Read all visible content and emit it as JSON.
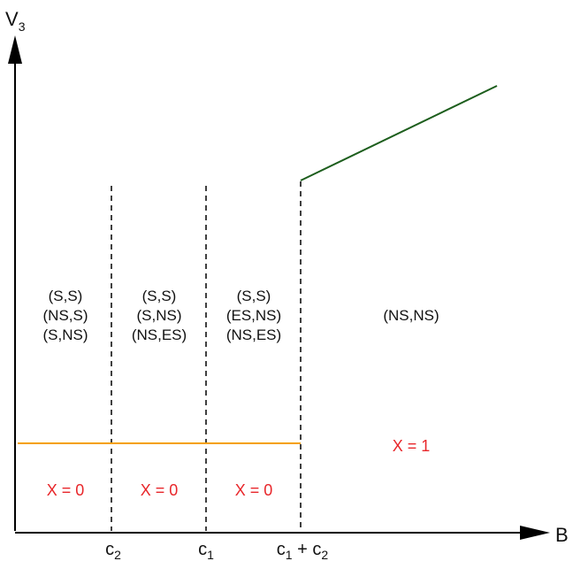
{
  "axes": {
    "y_title": "V",
    "y_title_sub": "3",
    "x_title": "B"
  },
  "ticks": [
    {
      "main": "c",
      "sub": "2"
    },
    {
      "main": "c",
      "sub": "1"
    },
    {
      "main": "c",
      "sub": "1",
      "mid": " + c",
      "sub2": "2"
    }
  ],
  "regions": [
    {
      "lines": [
        "(S,S)",
        "(NS,S)",
        "(S,NS)"
      ],
      "x_label": "X = 0"
    },
    {
      "lines": [
        "(S,S)",
        "(S,NS)",
        "(NS,ES)"
      ],
      "x_label": "X = 0"
    },
    {
      "lines": [
        "(S,S)",
        "(ES,NS)",
        "(NS,ES)"
      ],
      "x_label": "X = 0"
    },
    {
      "lines": [
        "(NS,NS)"
      ],
      "x_label": "X = 1"
    }
  ],
  "colors": {
    "axis": "#000000",
    "dashed": "#000000",
    "threshold_line": "#f5a000",
    "rising_line": "#1d5e1d",
    "x_label": "#e8262a"
  }
}
